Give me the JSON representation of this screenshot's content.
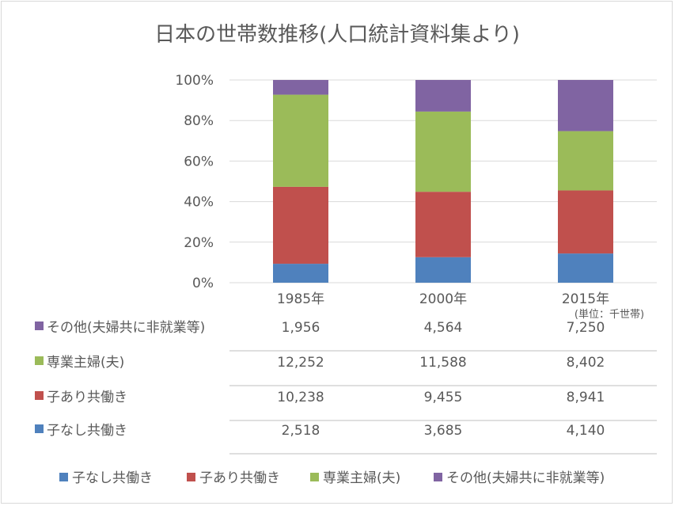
{
  "chart_data": {
    "type": "bar",
    "stacked": "percent",
    "title": "日本の世帯数推移(人口統計資料集より)",
    "unit_note": "(単位：千世帯)",
    "categories": [
      "1985年",
      "2000年",
      "2015年"
    ],
    "yticks": [
      "0%",
      "20%",
      "40%",
      "60%",
      "80%",
      "100%"
    ],
    "ylim": [
      0,
      100
    ],
    "grid": true,
    "legend_position": "bottom",
    "series": [
      {
        "name": "子なし共働き",
        "color": "#4f81bd",
        "values": [
          2518,
          3685,
          4140
        ],
        "labels": [
          "2,518",
          "3,685",
          "4,140"
        ]
      },
      {
        "name": "子あり共働き",
        "color": "#c0504d",
        "values": [
          10238,
          9455,
          8941
        ],
        "labels": [
          "10,238",
          "9,455",
          "8,941"
        ]
      },
      {
        "name": "専業主婦(夫)",
        "color": "#9bbb59",
        "values": [
          12252,
          11588,
          8402
        ],
        "labels": [
          "12,252",
          "11,588",
          "8,402"
        ]
      },
      {
        "name": "その他(夫婦共に非就業等)",
        "color": "#8064a2",
        "values": [
          1956,
          4564,
          7250
        ],
        "labels": [
          "1,956",
          "4,564",
          "7,250"
        ]
      }
    ]
  }
}
